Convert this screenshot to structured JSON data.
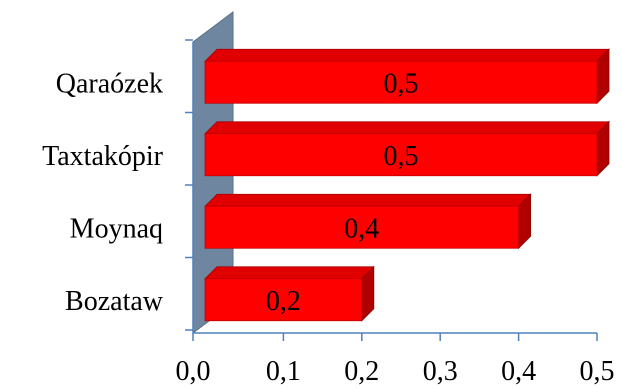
{
  "chart_data": {
    "type": "bar",
    "orientation": "horizontal",
    "style": "3d",
    "categories": [
      "Qaraózek",
      "Taxtakópir",
      "Moynaq",
      "Bozataw"
    ],
    "values": [
      0.5,
      0.5,
      0.4,
      0.2
    ],
    "data_labels": [
      "0,5",
      "0,5",
      "0,4",
      "0,2"
    ],
    "x_ticks": [
      "0,0",
      "0,1",
      "0,2",
      "0,3",
      "0,4",
      "0,5"
    ],
    "xlim": [
      0,
      0.5
    ],
    "title": "",
    "xlabel": "",
    "ylabel": "",
    "legend": "none",
    "grid": false,
    "colors": {
      "bar_front": "#ff0000",
      "bar_top": "#e00000",
      "bar_side": "#b00000",
      "wall": "#6e86a0",
      "axis": "#4f81bd"
    }
  }
}
